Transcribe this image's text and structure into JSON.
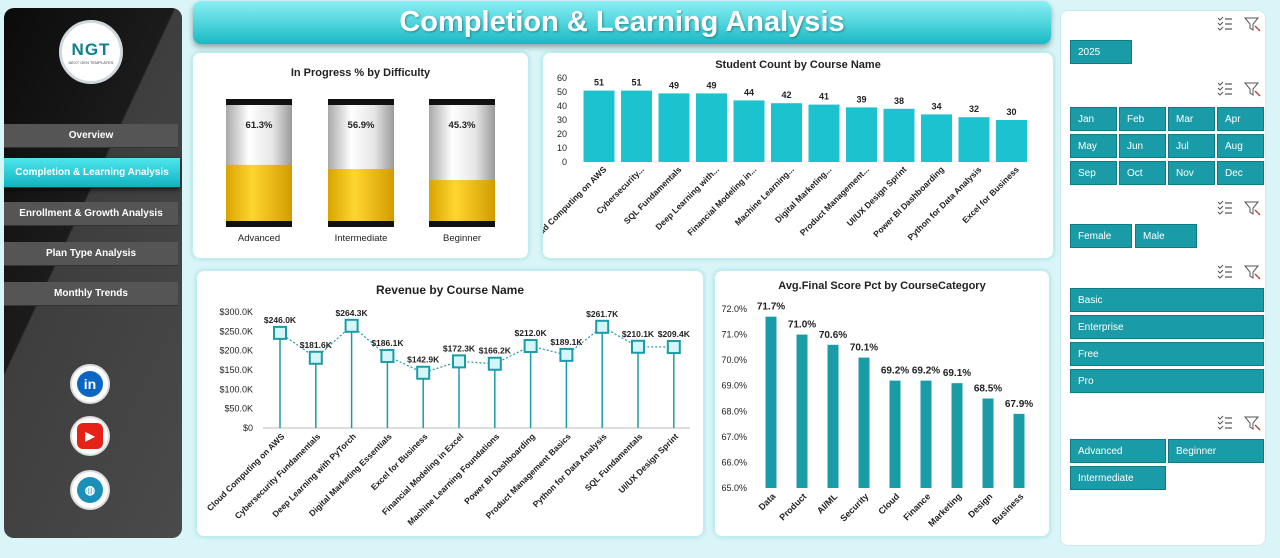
{
  "page": {
    "title": "Completion & Learning Analysis"
  },
  "sidebar": {
    "logo_text": "NGT",
    "logo_sub": "NEXT GEN TEMPLATES",
    "nav": [
      {
        "label": "Overview",
        "active": false
      },
      {
        "label": "Completion & Learning Analysis",
        "active": true
      },
      {
        "label": "Enrollment & Growth Analysis",
        "active": false
      },
      {
        "label": "Plan Type Analysis",
        "active": false
      },
      {
        "label": "Monthly Trends",
        "active": false
      }
    ],
    "social": [
      {
        "name": "linkedin-icon",
        "glyph": "in",
        "color": "#0a66c2"
      },
      {
        "name": "youtube-icon",
        "glyph": "▶",
        "color": "#e62117"
      },
      {
        "name": "globe-icon",
        "glyph": "◍",
        "color": "#1a8fb8"
      }
    ]
  },
  "charts": {
    "difficulty": {
      "title": "In Progress % by Difficulty",
      "chart_data": {
        "type": "bar",
        "categories": [
          "Advanced",
          "Intermediate",
          "Beginner"
        ],
        "values": [
          61.3,
          56.9,
          45.3
        ],
        "labels": [
          "61.3%",
          "56.9%",
          "45.3%"
        ],
        "ylim": [
          0,
          100
        ],
        "fill_color": "#f3c10e"
      }
    },
    "students": {
      "title": "Student Count by Course Name",
      "chart_data": {
        "type": "bar",
        "categories": [
          "Cloud Computing on AWS",
          "Cybersecurity...",
          "SQL Fundamentals",
          "Deep Learning with...",
          "Financial Modeling in...",
          "Machine Learning...",
          "Digital Marketing...",
          "Product Management...",
          "UI/UX Design Sprint",
          "Power BI Dashboarding",
          "Python for Data Analysis",
          "Excel for Business"
        ],
        "values": [
          51,
          51,
          49,
          49,
          44,
          42,
          41,
          39,
          38,
          34,
          32,
          30
        ],
        "yticks": [
          "0",
          "10",
          "20",
          "30",
          "40",
          "50",
          "60"
        ],
        "ylim": [
          0,
          60
        ],
        "color": "#1cc3cf"
      }
    },
    "revenue": {
      "title": "Revenue by Course Name",
      "chart_data": {
        "type": "line",
        "categories": [
          "Cloud Computing on AWS",
          "Cybersecurity Fundamentals",
          "Deep Learning with PyTorch",
          "Digital Marketing Essentials",
          "Excel for Business",
          "Financial Modeling in Excel",
          "Machine Learning Foundations",
          "Power BI Dashboarding",
          "Product Management Basics",
          "Python for Data Analysis",
          "SQL Fundamentals",
          "UI/UX Design Sprint"
        ],
        "values": [
          246.0,
          181.6,
          264.3,
          186.1,
          142.9,
          172.3,
          166.2,
          212.0,
          189.1,
          261.7,
          210.1,
          209.4
        ],
        "labels": [
          "$246.0K",
          "$181.6K",
          "$264.3K",
          "$186.1K",
          "$142.9K",
          "$172.3K",
          "$166.2K",
          "$212.0K",
          "$189.1K",
          "$261.7K",
          "$210.1K",
          "$209.4K"
        ],
        "yticks": [
          "$0",
          "$50.0K",
          "$100.0K",
          "$150.0K",
          "$200.0K",
          "$250.0K",
          "$300.0K"
        ],
        "ylim": [
          0,
          300
        ],
        "color": "#1a9ca8"
      }
    },
    "score": {
      "title": "Avg.Final Score Pct by CourseCategory",
      "chart_data": {
        "type": "bar",
        "categories": [
          "Data",
          "Product",
          "AI/ML",
          "Security",
          "Cloud",
          "Finance",
          "Marketing",
          "Design",
          "Business"
        ],
        "values": [
          71.7,
          71.0,
          70.6,
          70.1,
          69.2,
          69.2,
          69.1,
          68.5,
          67.9
        ],
        "labels": [
          "71.7%",
          "71.0%",
          "70.6%",
          "70.1%",
          "69.2%",
          "69.2%",
          "69.1%",
          "68.5%",
          "67.9%"
        ],
        "yticks": [
          "65.0%",
          "66.0%",
          "67.0%",
          "68.0%",
          "69.0%",
          "70.0%",
          "71.0%",
          "72.0%"
        ],
        "ylim": [
          65,
          72
        ],
        "color": "#1a9ca8"
      }
    }
  },
  "filters": {
    "year": [
      "2025"
    ],
    "months": [
      "Jan",
      "Feb",
      "Mar",
      "Apr",
      "May",
      "Jun",
      "Jul",
      "Aug",
      "Sep",
      "Oct",
      "Nov",
      "Dec"
    ],
    "gender": [
      "Female",
      "Male"
    ],
    "plan": [
      "Basic",
      "Enterprise",
      "Free",
      "Pro"
    ],
    "difficulty": [
      "Advanced",
      "Beginner",
      "Intermediate"
    ]
  }
}
